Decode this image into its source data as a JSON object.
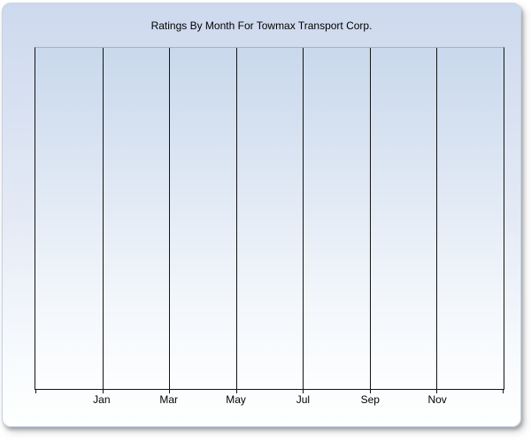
{
  "panel": {
    "title": "Ratings By Month For Towmax Transport Corp."
  },
  "chart_data": {
    "type": "line",
    "title": "Ratings By Month For Towmax Transport Corp.",
    "xlabel": "",
    "ylabel": "",
    "x_tick_labels": [
      "Jan",
      "Mar",
      "May",
      "Jul",
      "Sep",
      "Nov"
    ],
    "categories": [
      "Jan",
      "Mar",
      "May",
      "Jul",
      "Sep",
      "Nov"
    ],
    "series": [],
    "y_tick_labels": [],
    "grid": "vertical-only",
    "legend": "none",
    "x_axis_intervals": 7,
    "plot_state": "empty - no data points plotted"
  },
  "colors": {
    "page_bg": "#ffffff",
    "panel_top": "#cdd9ee",
    "panel_bottom": "#feffff",
    "panel_border": "#c9d3e4",
    "plot_top": "#c9d8ec",
    "plot_bottom": "#fdfeff",
    "plot_top_border": "#a6b1c3",
    "axis_line": "#141414",
    "text": "#000000"
  }
}
